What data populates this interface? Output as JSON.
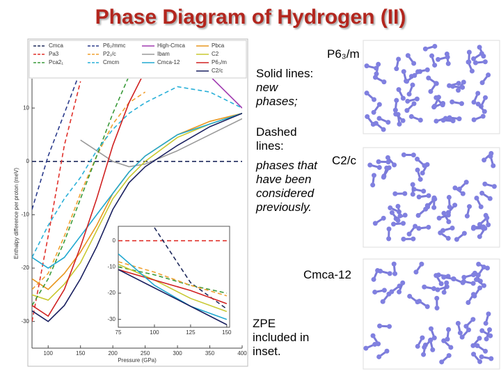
{
  "title": "Phase Diagram of Hydrogen (II)",
  "notes": {
    "solid_heading": "Solid lines:",
    "solid_text": "new phases;",
    "dashed_heading": "Dashed lines:",
    "dashed_text": "phases that have been considered previously.",
    "zpe": "ZPE included in inset."
  },
  "structure_labels": [
    "P6₃/m",
    "C2/c",
    "Cmca-12"
  ],
  "chart_data": [
    {
      "type": "line",
      "xlabel": "Pressure (GPa)",
      "ylabel": "Enthalpy difference per proton (meV)",
      "x": [
        75,
        100,
        125,
        150,
        175,
        200,
        225,
        250,
        300,
        350,
        400
      ],
      "xlim": [
        75,
        400
      ],
      "ylim": [
        -35,
        15.5
      ],
      "xticks": [
        100,
        150,
        200,
        250,
        300,
        350,
        400
      ],
      "yticks": [
        10,
        0,
        -10,
        -20,
        -30
      ],
      "series": [
        {
          "name": "Cmca",
          "color": "#1f2a5c",
          "style": "dashed",
          "values": [
            0,
            0,
            0,
            0,
            0,
            0,
            0,
            0,
            0,
            0,
            0
          ]
        },
        {
          "name": "P6₂/mmc",
          "color": "#2b3b8c",
          "style": "dashed",
          "values": [
            -9,
            1,
            9,
            17,
            null,
            null,
            null,
            null,
            null,
            null,
            null
          ]
        },
        {
          "name": "High-Cmca",
          "color": "#a03ab0",
          "style": "solid",
          "values": [
            null,
            null,
            null,
            null,
            null,
            null,
            null,
            null,
            null,
            16,
            10
          ]
        },
        {
          "name": "Pbca",
          "color": "#e8961e",
          "style": "solid",
          "values": [
            -22,
            -24,
            -21,
            -17,
            -12,
            -6,
            -2,
            1,
            5,
            7.5,
            9
          ]
        },
        {
          "name": "Pa3",
          "color": "#e0302a",
          "style": "dashed",
          "values": [
            -30,
            -14,
            3,
            15,
            null,
            null,
            null,
            null,
            null,
            null,
            null
          ]
        },
        {
          "name": "P2₁/c",
          "color": "#f0a030",
          "style": "dashed",
          "values": [
            -24,
            -21,
            -14,
            -6,
            1,
            7,
            11,
            13,
            null,
            null,
            null
          ]
        },
        {
          "name": "Ibam",
          "color": "#999999",
          "style": "solid",
          "values": [
            null,
            null,
            null,
            4,
            2,
            0,
            -1,
            -0.5,
            2,
            5,
            8
          ]
        },
        {
          "name": "C2",
          "color": "#c8c830",
          "style": "solid",
          "values": [
            -25,
            -26,
            -23,
            -19,
            -13,
            -7,
            -3,
            0,
            4.5,
            7,
            9
          ]
        },
        {
          "name": "Pca2₁",
          "color": "#3a9a3a",
          "style": "dashed",
          "values": [
            -27,
            -22,
            -15,
            -7,
            1,
            9,
            16,
            null,
            null,
            null,
            null
          ]
        },
        {
          "name": "Cmcm",
          "color": "#29b0d8",
          "style": "dashed",
          "values": [
            -18,
            -12,
            -7,
            -3,
            2,
            6,
            9,
            11,
            14,
            13,
            10
          ]
        },
        {
          "name": "Cmca-12",
          "color": "#20a8d0",
          "style": "solid",
          "values": [
            -18,
            -20,
            -18,
            -14,
            -10,
            -6,
            -2,
            1,
            5,
            7,
            9
          ]
        },
        {
          "name": "P6₃/m",
          "color": "#d02020",
          "style": "solid",
          "values": [
            -27,
            -29,
            -24,
            -16,
            -7,
            3,
            11,
            17,
            null,
            null,
            null
          ]
        },
        {
          "name": "C2/c",
          "color": "#1a2060",
          "style": "solid",
          "values": [
            -28,
            -30,
            -27,
            -22,
            -16,
            -9,
            -4,
            -1,
            3,
            6.5,
            9
          ]
        }
      ]
    },
    {
      "type": "line",
      "x": [
        75,
        100,
        125,
        150
      ],
      "xlim": [
        75,
        152
      ],
      "ylim": [
        -33,
        5.5
      ],
      "xticks": [
        75,
        100,
        125,
        150
      ],
      "yticks": [
        0,
        -10,
        -20,
        -30
      ],
      "series": [
        {
          "name": "Pa3",
          "color": "#e0302a",
          "style": "dashed",
          "values": [
            0,
            0,
            0,
            0
          ]
        },
        {
          "name": "Cmca",
          "color": "#1f2a5c",
          "style": "dashed",
          "values": [
            null,
            5,
            -16,
            -26
          ]
        },
        {
          "name": "Pca2₁",
          "color": "#3a9a3a",
          "style": "dashed",
          "values": [
            -10,
            -13,
            -17,
            -20
          ]
        },
        {
          "name": "P2₁/c",
          "color": "#f0a030",
          "style": "dashed",
          "values": [
            -8,
            -12,
            -17,
            -21
          ]
        },
        {
          "name": "C2",
          "color": "#c8c830",
          "style": "solid",
          "values": [
            -9,
            -15,
            -22,
            -27
          ]
        },
        {
          "name": "P6₃/m",
          "color": "#d02020",
          "style": "solid",
          "values": [
            -11,
            -15,
            -19,
            -24
          ]
        },
        {
          "name": "Cmca-12",
          "color": "#20a8d0",
          "style": "solid",
          "values": [
            -5,
            -17,
            -25,
            -30
          ]
        },
        {
          "name": "C2/c",
          "color": "#1a2060",
          "style": "solid",
          "values": [
            -11,
            -18,
            -25,
            -32
          ]
        }
      ]
    }
  ]
}
